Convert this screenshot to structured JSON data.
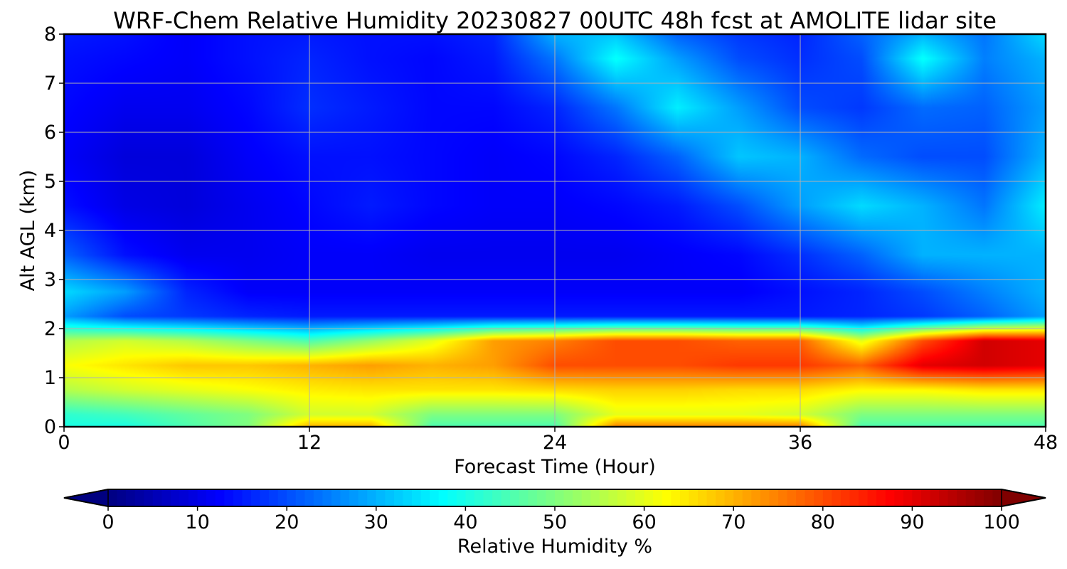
{
  "chart_data": {
    "type": "heatmap",
    "title": "WRF-Chem Relative Humidity 20230827 00UTC 48h fcst at AMOLITE lidar site",
    "xlabel": "Forecast Time (Hour)",
    "ylabel": "Alt AGL (km)",
    "xlim": [
      0,
      48
    ],
    "ylim": [
      0,
      8
    ],
    "x_ticks": [
      0,
      12,
      24,
      36,
      48
    ],
    "y_ticks": [
      0,
      1,
      2,
      3,
      4,
      5,
      6,
      7,
      8
    ],
    "grid": true,
    "colormap": "jet",
    "colorbar": {
      "label": "Relative Humidity %",
      "min": 0,
      "max": 100,
      "ticks": [
        0,
        10,
        20,
        30,
        40,
        50,
        60,
        70,
        80,
        90,
        100
      ],
      "orientation": "horizontal",
      "position": "bottom",
      "extend": "both"
    },
    "x": [
      0,
      3,
      6,
      9,
      12,
      15,
      18,
      21,
      24,
      27,
      30,
      33,
      36,
      39,
      42,
      45,
      48
    ],
    "y": [
      0,
      0.25,
      0.75,
      1.25,
      1.75,
      2.25,
      2.75,
      3.5,
      4.5,
      5.5,
      6.5,
      7.5,
      8
    ],
    "z": [
      [
        40,
        40,
        45,
        50,
        70,
        70,
        45,
        45,
        45,
        75,
        75,
        75,
        75,
        45,
        45,
        45,
        45
      ],
      [
        42,
        44,
        47,
        50,
        58,
        58,
        50,
        50,
        50,
        60,
        60,
        60,
        58,
        50,
        50,
        50,
        50
      ],
      [
        55,
        58,
        60,
        62,
        64,
        65,
        65,
        65,
        66,
        67,
        67,
        66,
        66,
        63,
        63,
        65,
        65
      ],
      [
        62,
        65,
        68,
        68,
        70,
        72,
        70,
        72,
        80,
        80,
        80,
        82,
        82,
        78,
        90,
        92,
        90
      ],
      [
        55,
        58,
        55,
        50,
        45,
        52,
        60,
        72,
        75,
        80,
        80,
        78,
        78,
        60,
        80,
        92,
        90
      ],
      [
        28,
        20,
        18,
        16,
        15,
        15,
        15,
        15,
        15,
        15,
        15,
        15,
        15,
        16,
        18,
        22,
        28
      ],
      [
        34,
        28,
        16,
        12,
        12,
        12,
        12,
        12,
        12,
        12,
        12,
        12,
        14,
        16,
        20,
        25,
        30
      ],
      [
        22,
        14,
        11,
        11,
        12,
        12,
        11,
        11,
        11,
        11,
        12,
        13,
        17,
        22,
        30,
        30,
        30
      ],
      [
        14,
        10,
        9,
        11,
        13,
        15,
        13,
        12,
        12,
        13,
        15,
        20,
        28,
        34,
        30,
        24,
        36
      ],
      [
        12,
        9,
        9,
        12,
        14,
        14,
        13,
        12,
        13,
        16,
        22,
        32,
        30,
        23,
        20,
        20,
        30
      ],
      [
        13,
        11,
        11,
        13,
        17,
        15,
        13,
        13,
        16,
        24,
        36,
        28,
        20,
        18,
        23,
        22,
        28
      ],
      [
        14,
        13,
        12,
        14,
        16,
        14,
        13,
        15,
        24,
        38,
        28,
        20,
        17,
        20,
        38,
        25,
        30
      ],
      [
        15,
        14,
        12,
        14,
        15,
        14,
        14,
        16,
        30,
        32,
        22,
        18,
        16,
        22,
        30,
        24,
        34
      ]
    ]
  }
}
